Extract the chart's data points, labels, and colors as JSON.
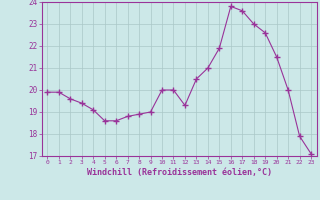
{
  "x": [
    0,
    1,
    2,
    3,
    4,
    5,
    6,
    7,
    8,
    9,
    10,
    11,
    12,
    13,
    14,
    15,
    16,
    17,
    18,
    19,
    20,
    21,
    22,
    23
  ],
  "y": [
    19.9,
    19.9,
    19.6,
    19.4,
    19.1,
    18.6,
    18.6,
    18.8,
    18.9,
    19.0,
    20.0,
    20.0,
    19.3,
    20.5,
    21.0,
    21.9,
    23.8,
    23.6,
    23.0,
    22.6,
    21.5,
    20.0,
    17.9,
    17.1
  ],
  "line_color": "#993399",
  "marker_color": "#993399",
  "bg_color": "#cce8e8",
  "grid_color": "#aac8c8",
  "axis_color": "#993399",
  "xlabel": "Windchill (Refroidissement éolien,°C)",
  "ylim": [
    17,
    24
  ],
  "xlim": [
    -0.5,
    23.5
  ],
  "yticks": [
    17,
    18,
    19,
    20,
    21,
    22,
    23,
    24
  ],
  "xticks": [
    0,
    1,
    2,
    3,
    4,
    5,
    6,
    7,
    8,
    9,
    10,
    11,
    12,
    13,
    14,
    15,
    16,
    17,
    18,
    19,
    20,
    21,
    22,
    23
  ]
}
